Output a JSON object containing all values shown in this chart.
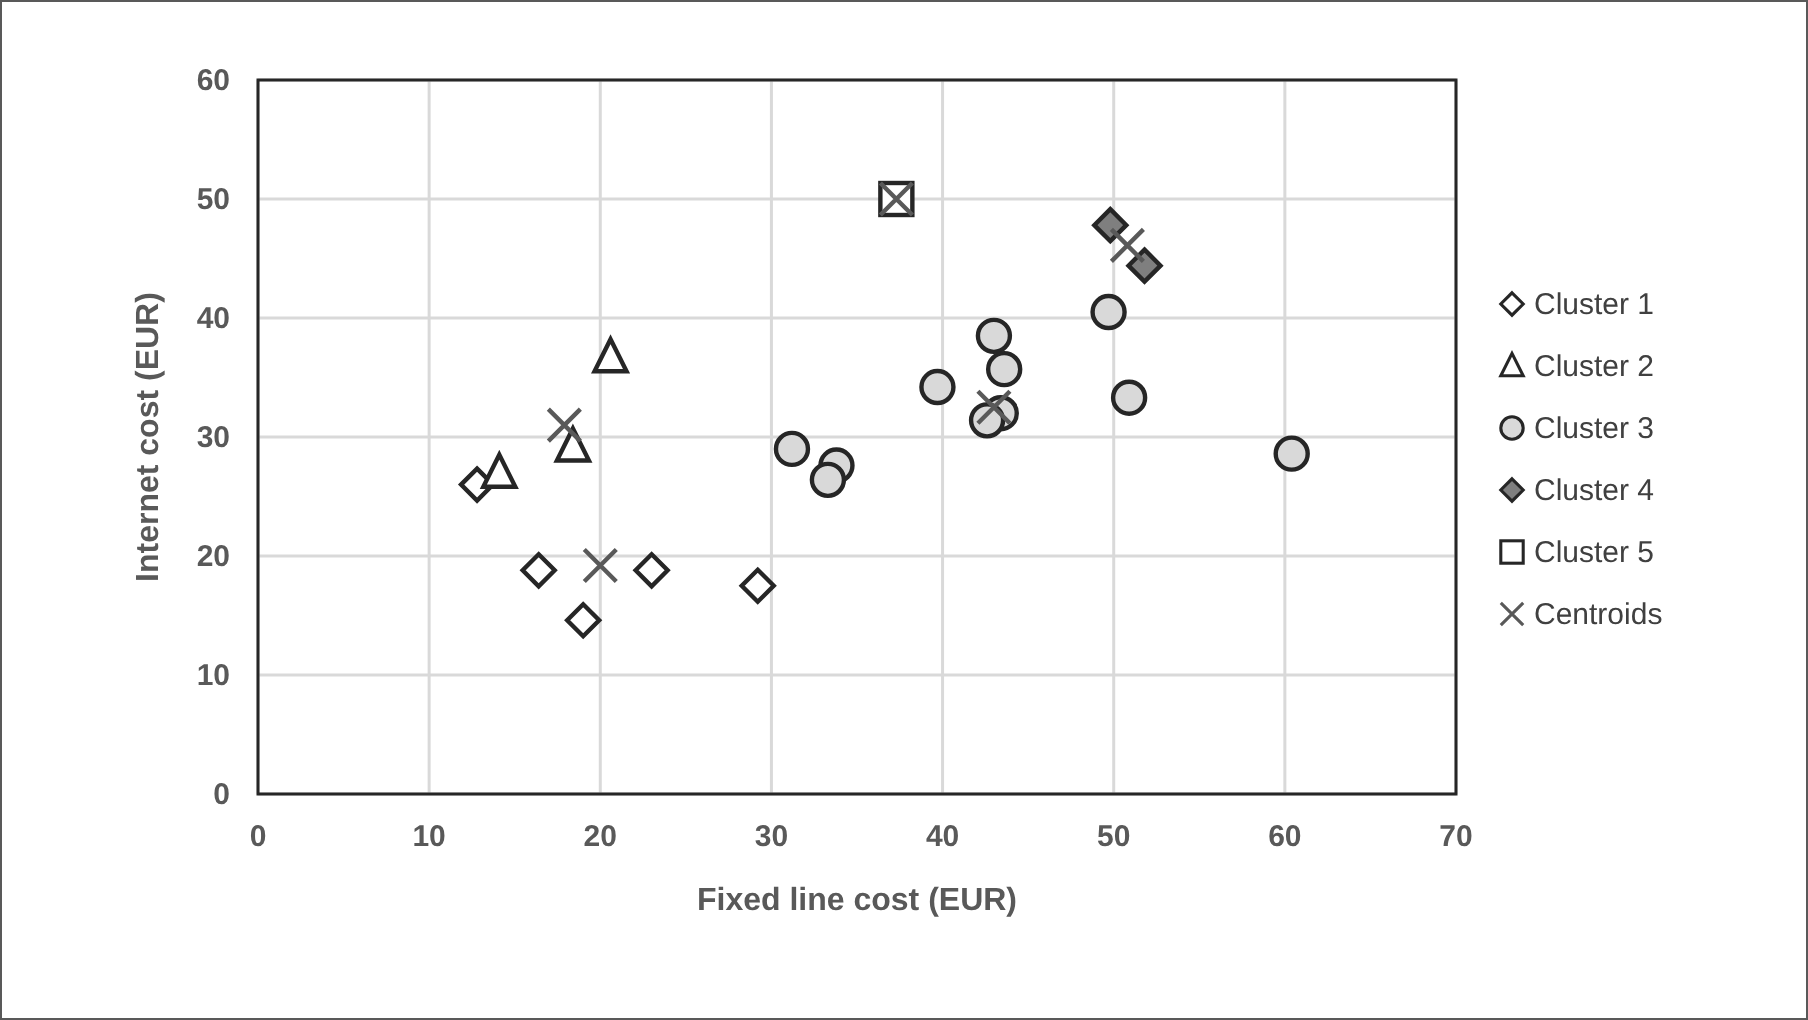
{
  "chart_data": {
    "type": "scatter",
    "xlabel": "Fixed line cost (EUR)",
    "ylabel": "Internet cost (EUR)",
    "xlim": [
      0,
      70
    ],
    "ylim": [
      0,
      60
    ],
    "xticks": [
      0,
      10,
      20,
      30,
      40,
      50,
      60,
      70
    ],
    "yticks": [
      0,
      10,
      20,
      30,
      40,
      50,
      60
    ],
    "grid": true,
    "legend": "right",
    "series": [
      {
        "name": "Cluster 1",
        "marker": "diamond",
        "color": "#ffffff",
        "x": [
          12.8,
          16.4,
          19,
          23,
          29.2
        ],
        "values": [
          26,
          18.8,
          14.6,
          18.8,
          17.5
        ]
      },
      {
        "name": "Cluster 2",
        "marker": "triangle",
        "color": "#ffffff",
        "x": [
          14.1,
          18.4,
          20.6
        ],
        "values": [
          27,
          29.2,
          36.7
        ]
      },
      {
        "name": "Cluster 3",
        "marker": "circle",
        "color": "#d9d9d9",
        "x": [
          31.2,
          33.8,
          33.3,
          39.7,
          43,
          43.6,
          43.4,
          42.6,
          49.7,
          50.9,
          60.4
        ],
        "values": [
          29,
          27.6,
          26.4,
          34.2,
          38.5,
          35.7,
          32,
          31.4,
          40.5,
          33.3,
          28.6
        ]
      },
      {
        "name": "Cluster 4",
        "marker": "diamond",
        "color": "#7f7f7f",
        "x": [
          49.8,
          51.8
        ],
        "values": [
          47.8,
          44.4
        ]
      },
      {
        "name": "Cluster 5",
        "marker": "square",
        "color": "#ffffff",
        "x": [
          37.3
        ],
        "values": [
          50
        ]
      },
      {
        "name": "Centroids",
        "marker": "cross",
        "color": "#595959",
        "x": [
          17.9,
          20,
          43,
          50.8,
          37.3
        ],
        "values": [
          31,
          19.2,
          32.5,
          46.1,
          50
        ]
      }
    ]
  }
}
